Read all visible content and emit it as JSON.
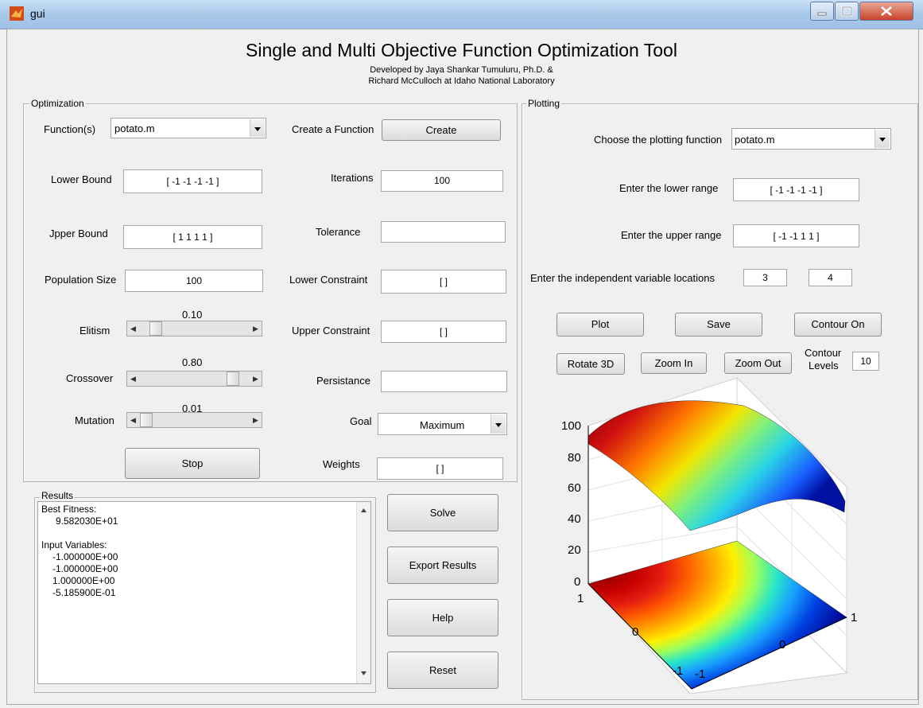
{
  "window": {
    "title": "gui"
  },
  "header": {
    "title": "Single and Multi Objective Function Optimization Tool",
    "line1": "Developed by Jaya Shankar Tumuluru, Ph.D. &",
    "line2": "Richard McCulloch at Idaho National Laboratory"
  },
  "optimization": {
    "panel_label": "Optimization",
    "function_label": "Function(s)",
    "function_value": "potato.m",
    "create_label": "Create a Function",
    "create_button": "Create",
    "lower_bound_label": "Lower Bound",
    "lower_bound_value": "[ -1 -1 -1 -1 ]",
    "iterations_label": "Iterations",
    "iterations_value": "100",
    "upper_bound_label": "Jpper Bound",
    "upper_bound_value": "[ 1 1 1 1 ]",
    "tolerance_label": "Tolerance",
    "tolerance_value": "",
    "population_label": "Population Size",
    "population_value": "100",
    "lower_constraint_label": "Lower Constraint",
    "lower_constraint_value": "[ ]",
    "elitism_label": "Elitism",
    "elitism_value": "0.10",
    "upper_constraint_label": "Upper Constraint",
    "upper_constraint_value": "[ ]",
    "crossover_label": "Crossover",
    "crossover_value": "0.80",
    "persistance_label": "Persistance",
    "persistance_value": "",
    "mutation_label": "Mutation",
    "mutation_value": "0.01",
    "goal_label": "Goal",
    "goal_value": "Maximum",
    "stop_button": "Stop",
    "weights_label": "Weights",
    "weights_value": "[ ]"
  },
  "results": {
    "panel_label": "Results",
    "lines": [
      "Best Fitness:",
      "9.582030E+01",
      "",
      "Input Variables:",
      "-1.000000E+00",
      "-1.000000E+00",
      "1.000000E+00",
      "-5.185900E-01"
    ]
  },
  "actions": {
    "solve": "Solve",
    "export": "Export Results",
    "help": "Help",
    "reset": "Reset"
  },
  "plotting": {
    "panel_label": "Plotting",
    "function_label": "Choose the plotting function",
    "function_value": "potato.m",
    "lower_range_label": "Enter the lower range",
    "lower_range_value": "[ -1 -1 -1 -1 ]",
    "upper_range_label": "Enter the upper range",
    "upper_range_value": "[ -1 -1 1 1 ]",
    "indep_label": "Enter the independent variable locations",
    "indep_1": "3",
    "indep_2": "4",
    "plot_button": "Plot",
    "save_button": "Save",
    "contour_button": "Contour On",
    "rotate_button": "Rotate 3D",
    "zoomin_button": "Zoom In",
    "zoomout_button": "Zoom Out",
    "contour_levels_label_1": "Contour",
    "contour_levels_label_2": "Levels",
    "contour_levels_value": "10"
  },
  "plot": {
    "z_ticks": [
      "100",
      "80",
      "60",
      "40",
      "20",
      "0"
    ],
    "x_ticks": [
      "1",
      "0",
      "-1"
    ],
    "y_ticks": [
      "-1",
      "0",
      "1"
    ]
  },
  "colors": {
    "titlebar": "#a9c9ea",
    "background": "#f0f0f0"
  }
}
